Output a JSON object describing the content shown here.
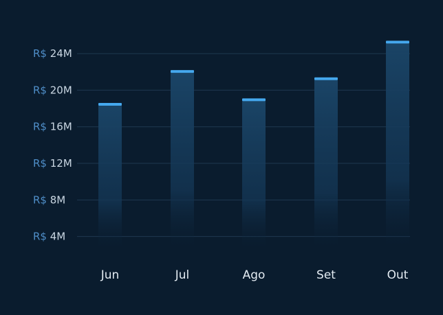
{
  "chart_data": {
    "type": "bar",
    "categories": [
      "Jun",
      "Jul",
      "Ago",
      "Set",
      "Out"
    ],
    "values": [
      18.3,
      21.9,
      18.8,
      21.1,
      25.1
    ],
    "ylim": [
      0,
      26
    ],
    "yticks": [
      4,
      8,
      12,
      16,
      20,
      24
    ],
    "ytick_prefix": "R$",
    "ytick_suffix": "M",
    "grid": true,
    "title": "",
    "xlabel": "",
    "ylabel": ""
  },
  "colors": {
    "background": "#0a1c2e",
    "bar": "#1a4466",
    "bar_cap": "#45a8ee",
    "grid": "#1f3850",
    "tick_prefix": "#4f8ec8",
    "tick_text": "#c9d6e2",
    "category_text": "#e3ebf2"
  }
}
